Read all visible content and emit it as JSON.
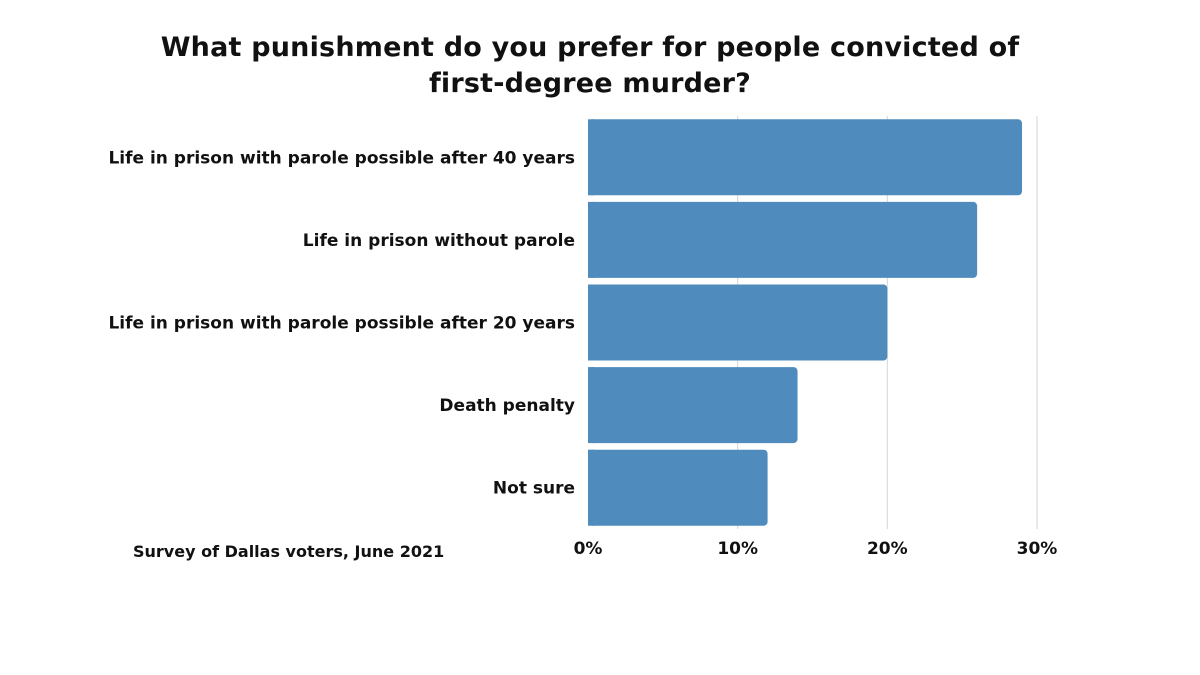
{
  "chart_data": {
    "type": "bar",
    "orientation": "horizontal",
    "title_lines": [
      "What punishment do you prefer for people convicted of",
      "first-degree murder?"
    ],
    "categories": [
      "Life in prison with parole possible after 40 years",
      "Life in prison without parole",
      "Life in prison with parole possible after 20 years",
      "Death penalty",
      "Not sure"
    ],
    "values": [
      29,
      26,
      20,
      14,
      12
    ],
    "xlim": [
      0,
      30
    ],
    "ticks": [
      0,
      10,
      20,
      30
    ],
    "tick_labels": [
      "0%",
      "10%",
      "20%",
      "30%"
    ],
    "grid": true,
    "bar_color": "#4f8bbd",
    "grid_color": "#d6d6d6"
  },
  "source": "Survey of Dallas voters, June 2021"
}
